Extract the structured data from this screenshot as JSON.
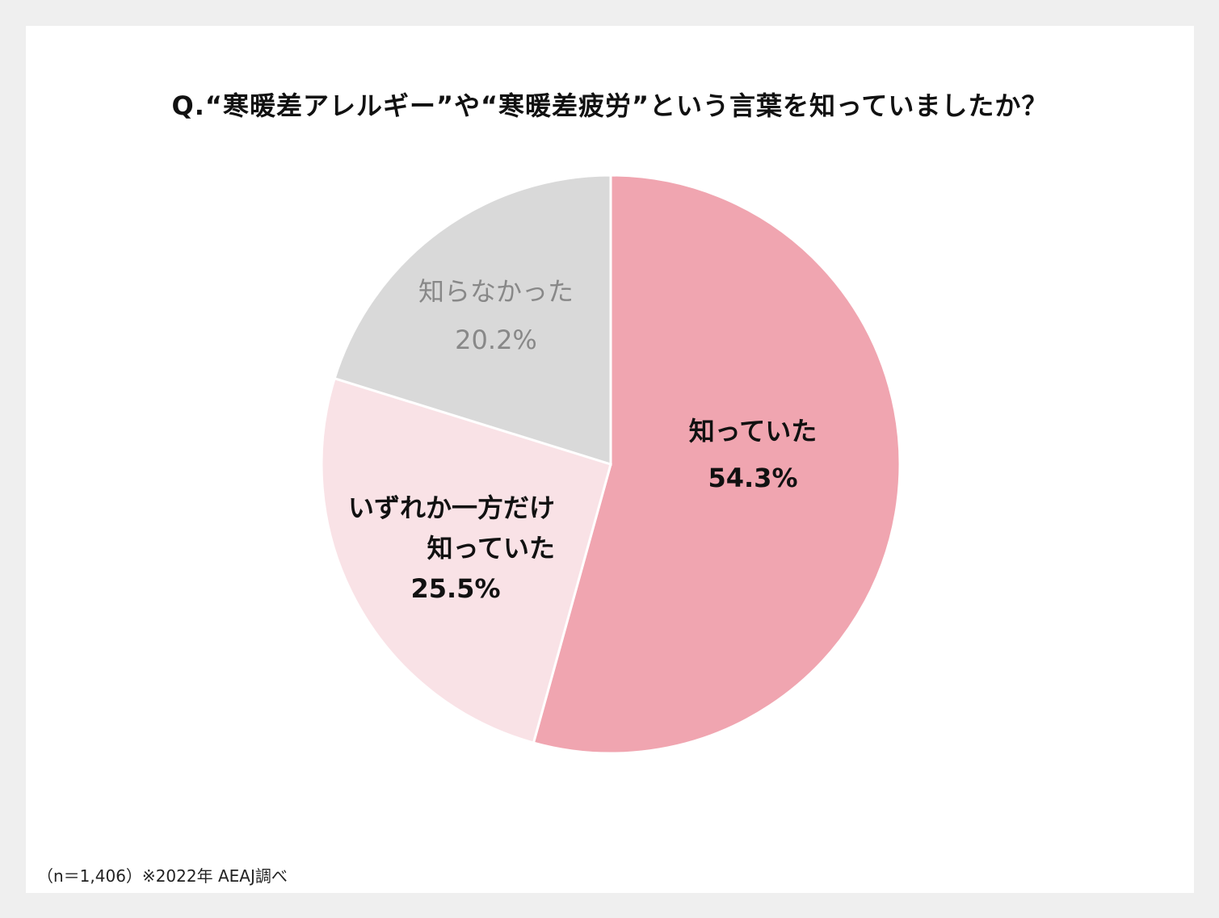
{
  "title": "Q.“寒暖差アレルギー”や“寒暖差疲労”という言葉を知っていましたか？",
  "note": "（n＝1,406）※2022年 AEAJ調べ",
  "chart_data": {
    "type": "pie",
    "title": "Q.“寒暖差アレルギー”や“寒暖差疲労”という言葉を知っていましたか？",
    "start_angle": "12 o'clock, clockwise",
    "slices": [
      {
        "label_lines": [
          "知っていた"
        ],
        "value": 54.3,
        "value_label": "54.3%",
        "color": "#f0a5b0",
        "text_color": "#111111",
        "bold": true
      },
      {
        "label_lines": [
          "いずれか一方だけ",
          "知っていた"
        ],
        "value": 25.5,
        "value_label": "25.5%",
        "color": "#f9e2e6",
        "text_color": "#111111",
        "bold": true
      },
      {
        "label_lines": [
          "知らなかった"
        ],
        "value": 20.2,
        "value_label": "20.2%",
        "color": "#d9d9d9",
        "text_color": "#888888",
        "bold": false
      }
    ]
  }
}
